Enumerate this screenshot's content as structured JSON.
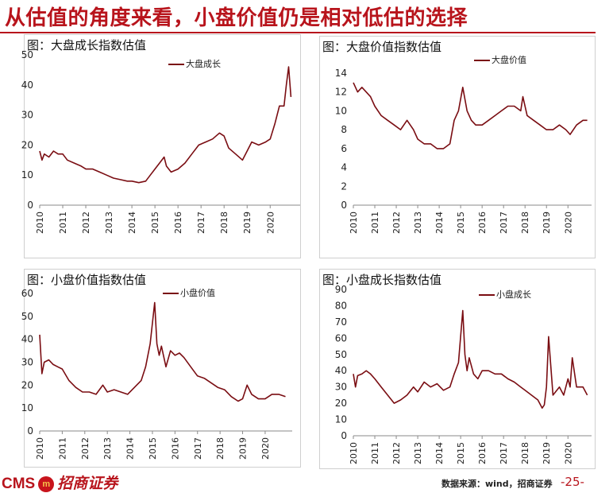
{
  "title": "从估值的角度来看，小盘价值仍是相对低估的选择",
  "footer": {
    "brand": "CMS",
    "brand_badge": "m",
    "brand_cn": "招商证券",
    "source": "数据来源：wind，招商证券",
    "page": "-25-"
  },
  "chart_data": [
    {
      "type": "line",
      "title": "图：大盘成长指数估值",
      "series": [
        {
          "name": "大盘成长",
          "color": "#7a0d12",
          "x": [
            2010.0,
            2010.1,
            2010.2,
            2010.4,
            2010.6,
            2010.8,
            2011.0,
            2011.2,
            2011.5,
            2011.8,
            2012.0,
            2012.3,
            2012.6,
            2012.9,
            2013.2,
            2013.5,
            2013.8,
            2014.0,
            2014.3,
            2014.6,
            2014.8,
            2015.0,
            2015.2,
            2015.4,
            2015.5,
            2015.7,
            2016.0,
            2016.3,
            2016.6,
            2016.9,
            2017.2,
            2017.5,
            2017.8,
            2018.0,
            2018.2,
            2018.5,
            2018.8,
            2019.0,
            2019.2,
            2019.5,
            2019.8,
            2020.0,
            2020.2,
            2020.4,
            2020.6,
            2020.7,
            2020.8,
            2020.9
          ],
          "y": [
            18,
            15,
            17,
            16,
            18,
            17,
            17,
            15,
            14,
            13,
            12,
            12,
            11,
            10,
            9,
            8.5,
            8,
            8,
            7.5,
            8,
            10,
            12,
            14,
            16,
            13,
            11,
            12,
            14,
            17,
            20,
            21,
            22,
            24,
            23,
            19,
            17,
            15,
            18,
            21,
            20,
            21,
            22,
            27,
            33,
            33,
            40,
            46,
            36
          ]
        }
      ],
      "xlabel": "",
      "ylabel": "",
      "xticks": [
        "2010",
        "2011",
        "2012",
        "2013",
        "2014",
        "2015",
        "2016",
        "2017",
        "2018",
        "2019",
        "2020"
      ],
      "xlim": [
        2010,
        2021.3
      ],
      "ylim": [
        0,
        50
      ],
      "yticks": [
        0,
        10,
        20,
        30,
        40,
        50
      ],
      "grid": false,
      "legend": "top-center"
    },
    {
      "type": "line",
      "title": "图：大盘价值指数估值",
      "series": [
        {
          "name": "大盘价值",
          "color": "#7a0d12",
          "x": [
            2010.0,
            2010.2,
            2010.4,
            2010.6,
            2010.8,
            2011.0,
            2011.3,
            2011.6,
            2011.9,
            2012.2,
            2012.5,
            2012.8,
            2013.0,
            2013.3,
            2013.6,
            2013.9,
            2014.2,
            2014.5,
            2014.7,
            2014.9,
            2015.1,
            2015.3,
            2015.5,
            2015.7,
            2016.0,
            2016.3,
            2016.6,
            2016.9,
            2017.2,
            2017.5,
            2017.8,
            2017.9,
            2018.1,
            2018.4,
            2018.7,
            2019.0,
            2019.3,
            2019.6,
            2019.9,
            2020.1,
            2020.4,
            2020.7,
            2020.9
          ],
          "y": [
            13,
            12,
            12.5,
            12,
            11.5,
            10.5,
            9.5,
            9,
            8.5,
            8,
            9,
            8,
            7,
            6.5,
            6.5,
            6,
            6,
            6.5,
            9,
            10,
            12.5,
            10,
            9,
            8.5,
            8.5,
            9,
            9.5,
            10,
            10.5,
            10.5,
            10,
            11.5,
            9.5,
            9,
            8.5,
            8,
            8,
            8.5,
            8,
            7.5,
            8.5,
            9,
            9
          ]
        }
      ],
      "xlabel": "",
      "ylabel": "",
      "xticks": [
        "2010",
        "2011",
        "2012",
        "2013",
        "2014",
        "2015",
        "2016",
        "2017",
        "2018",
        "2019",
        "2020"
      ],
      "xlim": [
        2010,
        2021.1
      ],
      "ylim": [
        0,
        14
      ],
      "yticks": [
        0,
        2,
        4,
        6,
        8,
        10,
        12,
        14
      ],
      "grid": false,
      "legend": "top-center"
    },
    {
      "type": "line",
      "title": "图：小盘价值指数估值",
      "series": [
        {
          "name": "小盘价值",
          "color": "#7a0d12",
          "x": [
            2010.0,
            2010.1,
            2010.2,
            2010.4,
            2010.6,
            2010.8,
            2011.0,
            2011.3,
            2011.6,
            2011.9,
            2012.2,
            2012.5,
            2012.8,
            2013.0,
            2013.3,
            2013.6,
            2013.9,
            2014.2,
            2014.5,
            2014.7,
            2014.9,
            2015.1,
            2015.2,
            2015.3,
            2015.4,
            2015.6,
            2015.8,
            2016.0,
            2016.2,
            2016.4,
            2016.7,
            2017.0,
            2017.3,
            2017.6,
            2017.9,
            2018.2,
            2018.5,
            2018.8,
            2019.0,
            2019.2,
            2019.4,
            2019.7,
            2020.0,
            2020.3,
            2020.6,
            2020.9
          ],
          "y": [
            42,
            25,
            30,
            31,
            29,
            28,
            27,
            22,
            19,
            17,
            17,
            16,
            20,
            17,
            18,
            17,
            16,
            19,
            22,
            28,
            38,
            56,
            38,
            33,
            37,
            28,
            35,
            33,
            34,
            32,
            28,
            24,
            23,
            21,
            19,
            18,
            15,
            13,
            14,
            20,
            16,
            14,
            14,
            16,
            16,
            15
          ]
        }
      ],
      "xlabel": "",
      "ylabel": "",
      "xticks": [
        "2010",
        "2011",
        "2012",
        "2013",
        "2014",
        "2015",
        "2016",
        "2017",
        "2018",
        "2019",
        "2020"
      ],
      "xlim": [
        2010,
        2021.2
      ],
      "ylim": [
        0,
        60
      ],
      "yticks": [
        0,
        10,
        20,
        30,
        40,
        50,
        60
      ],
      "grid": false,
      "legend": "top-center"
    },
    {
      "type": "line",
      "title": "图：小盘成长指数估值",
      "series": [
        {
          "name": "小盘成长",
          "color": "#7a0d12",
          "x": [
            2010.0,
            2010.1,
            2010.2,
            2010.4,
            2010.6,
            2010.8,
            2011.0,
            2011.3,
            2011.6,
            2011.9,
            2012.2,
            2012.5,
            2012.8,
            2013.0,
            2013.3,
            2013.6,
            2013.9,
            2014.2,
            2014.5,
            2014.7,
            2014.9,
            2015.1,
            2015.2,
            2015.3,
            2015.4,
            2015.6,
            2015.8,
            2016.0,
            2016.3,
            2016.6,
            2016.9,
            2017.2,
            2017.5,
            2017.8,
            2018.0,
            2018.3,
            2018.6,
            2018.8,
            2018.9,
            2019.0,
            2019.1,
            2019.3,
            2019.6,
            2019.8,
            2020.0,
            2020.1,
            2020.2,
            2020.4,
            2020.7,
            2020.9
          ],
          "y": [
            38,
            30,
            37,
            38,
            40,
            38,
            35,
            30,
            25,
            20,
            22,
            25,
            30,
            27,
            33,
            30,
            32,
            28,
            30,
            38,
            45,
            77,
            50,
            40,
            48,
            38,
            35,
            40,
            40,
            38,
            38,
            35,
            33,
            30,
            28,
            25,
            22,
            17,
            19,
            30,
            61,
            25,
            30,
            25,
            35,
            30,
            48,
            30,
            30,
            25
          ]
        }
      ],
      "xlabel": "",
      "ylabel": "",
      "xticks": [
        "2010",
        "2011",
        "2012",
        "2013",
        "2014",
        "2015",
        "2016",
        "2017",
        "2018",
        "2019",
        "2020"
      ],
      "xlim": [
        2010,
        2021.1
      ],
      "ylim": [
        0,
        90
      ],
      "yticks": [
        0,
        10,
        20,
        30,
        40,
        50,
        60,
        70,
        80,
        90
      ],
      "grid": false,
      "legend": "top-center"
    }
  ]
}
